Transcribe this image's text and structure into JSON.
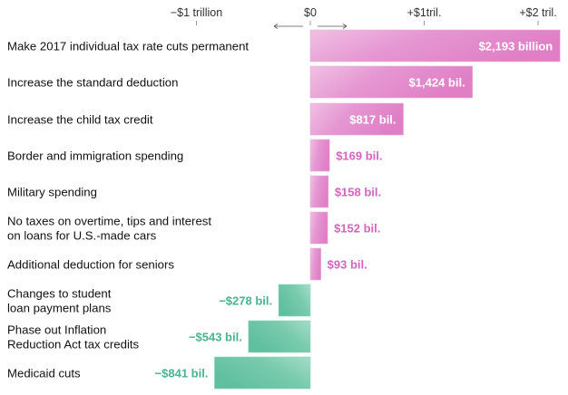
{
  "chart_data": {
    "type": "bar",
    "orientation": "horizontal",
    "title": "",
    "xlabel": "",
    "ylabel": "",
    "xlim": [
      -1.3,
      2.2
    ],
    "unit": "trillion dollars",
    "ticks": [
      {
        "value": -1,
        "label": "−$1 trillion"
      },
      {
        "value": 0,
        "label": "$0"
      },
      {
        "value": 1,
        "label": "+$1tril."
      },
      {
        "value": 2,
        "label": "+$2 tril."
      }
    ],
    "direction_arrows": true,
    "grid": false,
    "colors": {
      "positive": "#e07fc6",
      "positive_light": "#f1c0e3",
      "negative": "#5fbf9f",
      "negative_light": "#9edbc6",
      "positive_text": "#d763c0",
      "negative_text": "#48b38e"
    },
    "categories": [
      [
        "Make 2017 individual tax rate cuts permanent"
      ],
      [
        "Increase the standard deduction"
      ],
      [
        "Increase the child tax credit"
      ],
      [
        "Border and immigration spending"
      ],
      [
        "Military spending"
      ],
      [
        "No taxes on overtime, tips and interest",
        "on loans for U.S.-made cars"
      ],
      [
        "Additional deduction for seniors"
      ],
      [
        "Changes to student",
        "loan payment plans"
      ],
      [
        "Phase out Inflation",
        "Reduction Act tax credits"
      ],
      [
        "Medicaid cuts"
      ]
    ],
    "values": [
      2193,
      1424,
      817,
      169,
      158,
      152,
      93,
      -278,
      -543,
      -841
    ],
    "value_units": "billion dollars",
    "value_labels": [
      "$2,193 billion",
      "$1,424 bil.",
      "$817 bil.",
      "$169 bil.",
      "$158 bil.",
      "$152 bil.",
      "$93 bil.",
      "−$278 bil.",
      "−$543 bil.",
      "−$841 bil."
    ],
    "label_inside": [
      true,
      true,
      true,
      false,
      false,
      false,
      false,
      false,
      false,
      false
    ]
  }
}
